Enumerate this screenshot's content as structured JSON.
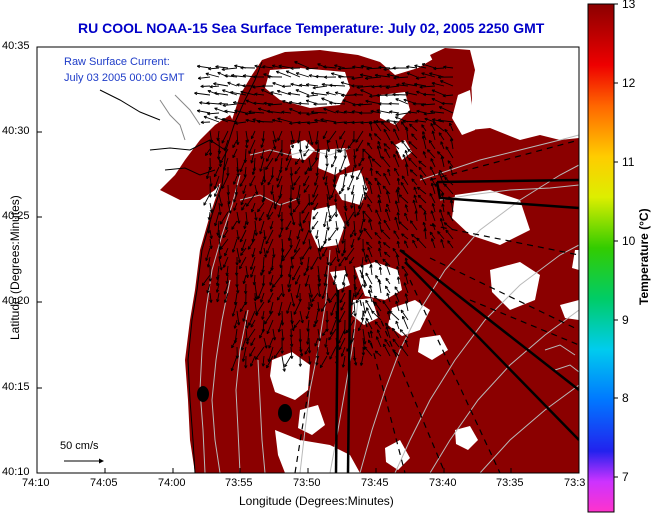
{
  "map": {
    "title": "RU COOL  NOAA-15  Sea Surface Temperature:  July 02, 2005 2250 GMT",
    "annotation_line1": "Raw Surface Current:",
    "annotation_line2": "July 03 2005 00:00 GMT",
    "scale_label": "50 cm/s",
    "xlabel": "Longitude (Degrees:Minutes)",
    "ylabel": "Latitude (Degrees:Minutes)",
    "x_ticks": [
      "74:10",
      "74:05",
      "74:00",
      "73:55",
      "73:50",
      "73:45",
      "73:40",
      "73:35",
      "73:3"
    ],
    "y_ticks": [
      "40:35",
      "40:30",
      "40:25",
      "40:20",
      "40:15",
      "40:10"
    ],
    "colors": {
      "sst_fill": "#8b0000",
      "land": "#ffffff",
      "title": "#0000c8",
      "annotation": "#1e3cc8"
    }
  },
  "colorbar": {
    "label": "Temperature (°C)",
    "ticks": [
      "13",
      "12",
      "11",
      "10",
      "9",
      "8",
      "7"
    ],
    "range": [
      6.6,
      13
    ]
  }
}
